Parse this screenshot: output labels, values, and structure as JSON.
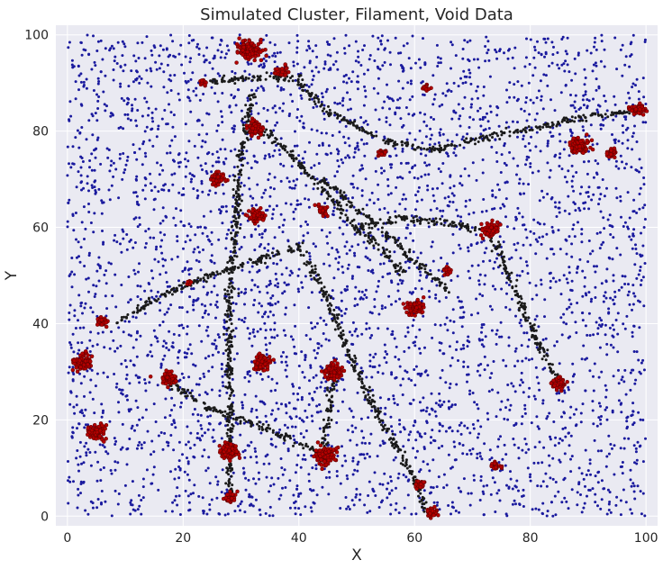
{
  "chart_data": {
    "type": "scatter",
    "title": "Simulated Cluster, Filament, Void Data",
    "xlabel": "X",
    "ylabel": "Y",
    "xlim": [
      -2,
      102
    ],
    "ylim": [
      -2,
      102
    ],
    "xticks": [
      0,
      20,
      40,
      60,
      80,
      100
    ],
    "yticks": [
      0,
      20,
      40,
      60,
      80,
      100
    ],
    "grid": true,
    "colors": {
      "background": "#eaeaf2",
      "grid": "#ffffff",
      "void": "#1a1a9e",
      "filament": "#1a1a1a",
      "cluster": "#b30000"
    },
    "series": [
      {
        "key": "void",
        "count": 4200
      },
      {
        "key": "filament",
        "segments": [
          [
            [
              23,
              90
            ],
            [
              30,
              91
            ],
            [
              40,
              91
            ]
          ],
          [
            [
              32,
              88
            ],
            [
              30,
              75
            ],
            [
              29,
              60
            ],
            [
              28,
              45
            ],
            [
              28,
              32
            ],
            [
              28,
              10
            ],
            [
              28,
              4
            ]
          ],
          [
            [
              31,
              80
            ],
            [
              34,
              80
            ],
            [
              38,
              76
            ],
            [
              44,
              68
            ],
            [
              50,
              60
            ],
            [
              55,
              55
            ],
            [
              58,
              50
            ]
          ],
          [
            [
              40,
              90
            ],
            [
              45,
              84
            ],
            [
              55,
              78
            ],
            [
              63,
              76
            ],
            [
              70,
              78
            ],
            [
              78,
              80
            ],
            [
              90,
              83
            ],
            [
              98,
              84
            ]
          ],
          [
            [
              50,
              60
            ],
            [
              58,
              62
            ],
            [
              66,
              61
            ],
            [
              73,
              59
            ]
          ],
          [
            [
              73,
              59
            ],
            [
              77,
              48
            ],
            [
              81,
              37
            ],
            [
              85,
              28
            ]
          ],
          [
            [
              8,
              40
            ],
            [
              15,
              45
            ],
            [
              20,
              48
            ],
            [
              30,
              52
            ],
            [
              40,
              56
            ]
          ],
          [
            [
              17,
              28
            ],
            [
              25,
              22
            ],
            [
              35,
              18
            ],
            [
              45,
              12
            ]
          ],
          [
            [
              46,
              30
            ],
            [
              45,
              20
            ],
            [
              44,
              12
            ]
          ],
          [
            [
              40,
              56
            ],
            [
              45,
              45
            ],
            [
              50,
              30
            ],
            [
              55,
              18
            ],
            [
              60,
              8
            ],
            [
              62,
              1
            ]
          ],
          [
            [
              44,
              70
            ],
            [
              52,
              62
            ],
            [
              60,
              53
            ],
            [
              66,
              47
            ]
          ]
        ]
      },
      {
        "key": "cluster",
        "clusters": [
          [
            31.5,
            97,
            1.0,
            130
          ],
          [
            37,
            92.5,
            0.5,
            50
          ],
          [
            23.5,
            90,
            0.25,
            14
          ],
          [
            32.5,
            80.5,
            0.7,
            80
          ],
          [
            26,
            70,
            0.6,
            70
          ],
          [
            32.5,
            62.5,
            0.6,
            70
          ],
          [
            44,
            63.5,
            0.45,
            45
          ],
          [
            54.5,
            75.5,
            0.35,
            20
          ],
          [
            62,
            89,
            0.35,
            16
          ],
          [
            73,
            59.5,
            0.7,
            90
          ],
          [
            65.5,
            51,
            0.35,
            22
          ],
          [
            60,
            43.5,
            0.8,
            90
          ],
          [
            21,
            48.5,
            0.22,
            8
          ],
          [
            6,
            40.5,
            0.45,
            40
          ],
          [
            2.8,
            32,
            0.8,
            90
          ],
          [
            33.5,
            32,
            0.8,
            90
          ],
          [
            46,
            30,
            0.8,
            90
          ],
          [
            17.5,
            28.5,
            0.65,
            70
          ],
          [
            5,
            17.5,
            0.7,
            80
          ],
          [
            28,
            13.5,
            0.8,
            90
          ],
          [
            44.5,
            12.5,
            0.9,
            110
          ],
          [
            28,
            4,
            0.55,
            50
          ],
          [
            61,
            6.5,
            0.4,
            30
          ],
          [
            63,
            0.8,
            0.45,
            35
          ],
          [
            74,
            10.5,
            0.38,
            25
          ],
          [
            85,
            27.5,
            0.55,
            55
          ],
          [
            88.5,
            77,
            0.9,
            100
          ],
          [
            94,
            75.5,
            0.5,
            45
          ],
          [
            98.5,
            84.5,
            0.55,
            60
          ]
        ]
      }
    ]
  }
}
